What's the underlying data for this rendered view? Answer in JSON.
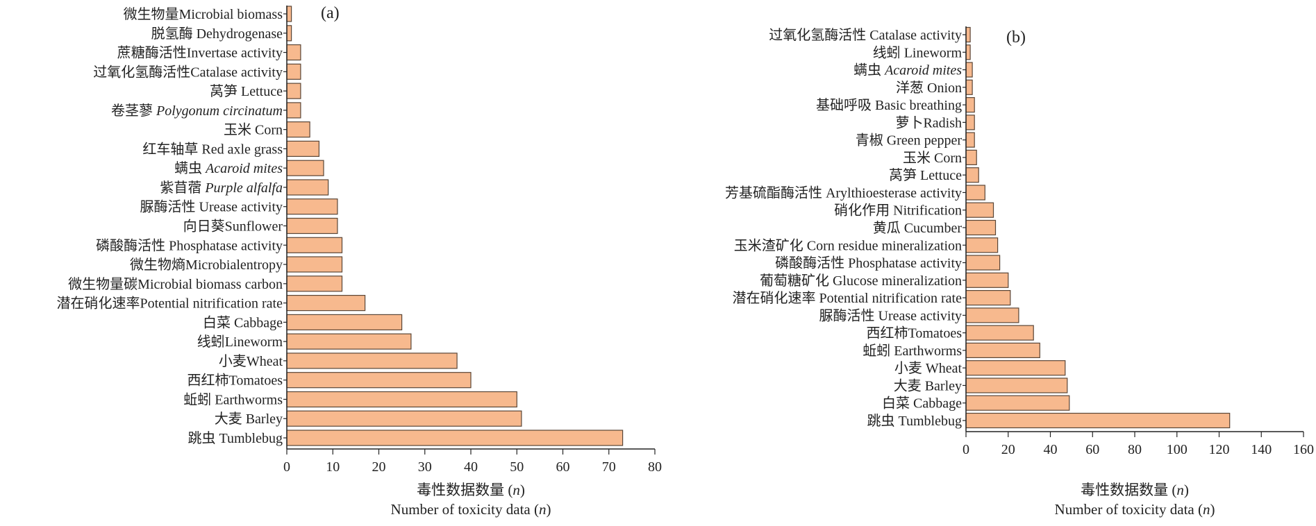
{
  "chart_data": [
    {
      "type": "bar",
      "orientation": "horizontal",
      "panel_label": "(a)",
      "categories": [
        {
          "zh": "微生物量",
          "en": "Microbial biomass",
          "italic": false
        },
        {
          "zh": "脱氢酶 ",
          "en": "Dehydrogenase",
          "italic": false
        },
        {
          "zh": "蔗糖酶活性",
          "en": "Invertase activity",
          "italic": false
        },
        {
          "zh": "过氧化氢酶活性",
          "en": "Catalase activity",
          "italic": false
        },
        {
          "zh": "莴笋 ",
          "en": "Lettuce",
          "italic": false
        },
        {
          "zh": "卷茎蓼 ",
          "en": "Polygonum circinatum",
          "italic": true
        },
        {
          "zh": "玉米 ",
          "en": "Corn",
          "italic": false
        },
        {
          "zh": "红车轴草 ",
          "en": "Red axle grass",
          "italic": false
        },
        {
          "zh": "螨虫 ",
          "en": "Acaroid mites",
          "italic": true
        },
        {
          "zh": "紫苜蓿 ",
          "en": "Purple alfalfa",
          "italic": true
        },
        {
          "zh": "脲酶活性 ",
          "en": "Urease activity",
          "italic": false
        },
        {
          "zh": "向日葵",
          "en": "Sunflower",
          "italic": false
        },
        {
          "zh": "磷酸酶活性 ",
          "en": "Phosphatase activity",
          "italic": false
        },
        {
          "zh": "微生物熵",
          "en": "Microbialentropy",
          "italic": false
        },
        {
          "zh": "微生物量碳",
          "en": "Microbial biomass carbon",
          "italic": false
        },
        {
          "zh": "潜在硝化速率",
          "en": "Potential nitrification rate",
          "italic": false
        },
        {
          "zh": "白菜 ",
          "en": "Cabbage",
          "italic": false
        },
        {
          "zh": "线蚓",
          "en": "Lineworm",
          "italic": false
        },
        {
          "zh": "小麦",
          "en": "Wheat",
          "italic": false
        },
        {
          "zh": "西红柿",
          "en": "Tomatoes",
          "italic": false
        },
        {
          "zh": "蚯蚓 ",
          "en": "Earthworms",
          "italic": false
        },
        {
          "zh": "大麦 ",
          "en": "Barley",
          "italic": false
        },
        {
          "zh": "跳虫 ",
          "en": "Tumblebug",
          "italic": false
        }
      ],
      "values": [
        1,
        1,
        3,
        3,
        3,
        3,
        5,
        7,
        8,
        9,
        11,
        11,
        12,
        12,
        12,
        17,
        25,
        27,
        37,
        40,
        50,
        51,
        73
      ],
      "xlim": [
        0,
        80
      ],
      "xticks": [
        0,
        10,
        20,
        30,
        40,
        50,
        60,
        70,
        80
      ],
      "xlabel_zh": "毒性数据数量 (",
      "xlabel_en": "Number of toxicity data (",
      "xlabel_var": "n",
      "xlabel_close": ")",
      "bar_color": "#f7b98e",
      "bar_edge": "#5a4536",
      "grid": false
    },
    {
      "type": "bar",
      "orientation": "horizontal",
      "panel_label": "(b)",
      "categories": [
        {
          "zh": "过氧化氢酶活性 ",
          "en": "Catalase activity",
          "italic": false
        },
        {
          "zh": "线蚓 ",
          "en": "Lineworm",
          "italic": false
        },
        {
          "zh": "螨虫 ",
          "en": "Acaroid mites",
          "italic": true
        },
        {
          "zh": "洋葱 ",
          "en": "Onion",
          "italic": false
        },
        {
          "zh": "基础呼吸 ",
          "en": "Basic breathing",
          "italic": false
        },
        {
          "zh": "萝卜",
          "en": "Radish",
          "italic": false
        },
        {
          "zh": "青椒 ",
          "en": "Green pepper",
          "italic": false
        },
        {
          "zh": "玉米 ",
          "en": "Corn",
          "italic": false
        },
        {
          "zh": "莴笋 ",
          "en": "Lettuce",
          "italic": false
        },
        {
          "zh": "芳基硫酯酶活性 ",
          "en": "Arylthioesterase activity",
          "italic": false
        },
        {
          "zh": "硝化作用 ",
          "en": "Nitrification",
          "italic": false
        },
        {
          "zh": "黄瓜 ",
          "en": "Cucumber",
          "italic": false
        },
        {
          "zh": "玉米渣矿化 ",
          "en": "Corn residue mineralization",
          "italic": false
        },
        {
          "zh": "磷酸酶活性 ",
          "en": "Phosphatase activity",
          "italic": false
        },
        {
          "zh": "葡萄糖矿化 ",
          "en": "Glucose mineralization",
          "italic": false
        },
        {
          "zh": "潜在硝化速率 ",
          "en": "Potential nitrification rate",
          "italic": false
        },
        {
          "zh": "脲酶活性 ",
          "en": "Urease activity",
          "italic": false
        },
        {
          "zh": "西红柿",
          "en": "Tomatoes",
          "italic": false
        },
        {
          "zh": "蚯蚓 ",
          "en": "Earthworms",
          "italic": false
        },
        {
          "zh": "小麦 ",
          "en": "Wheat",
          "italic": false
        },
        {
          "zh": "大麦 ",
          "en": "Barley",
          "italic": false
        },
        {
          "zh": "白菜 ",
          "en": "Cabbage",
          "italic": false
        },
        {
          "zh": "跳虫 ",
          "en": "Tumblebug",
          "italic": false
        }
      ],
      "values": [
        2,
        2,
        3,
        3,
        4,
        4,
        4,
        5,
        6,
        9,
        13,
        14,
        15,
        16,
        20,
        21,
        25,
        32,
        35,
        47,
        48,
        49,
        125
      ],
      "xlim": [
        0,
        160
      ],
      "xticks": [
        0,
        20,
        40,
        60,
        80,
        100,
        120,
        140,
        160
      ],
      "xlabel_zh": "毒性数据数量 (",
      "xlabel_en": "Number of toxicity data (",
      "xlabel_var": "n",
      "xlabel_close": ")",
      "bar_color": "#f7b98e",
      "bar_edge": "#5a4536",
      "grid": false
    }
  ]
}
